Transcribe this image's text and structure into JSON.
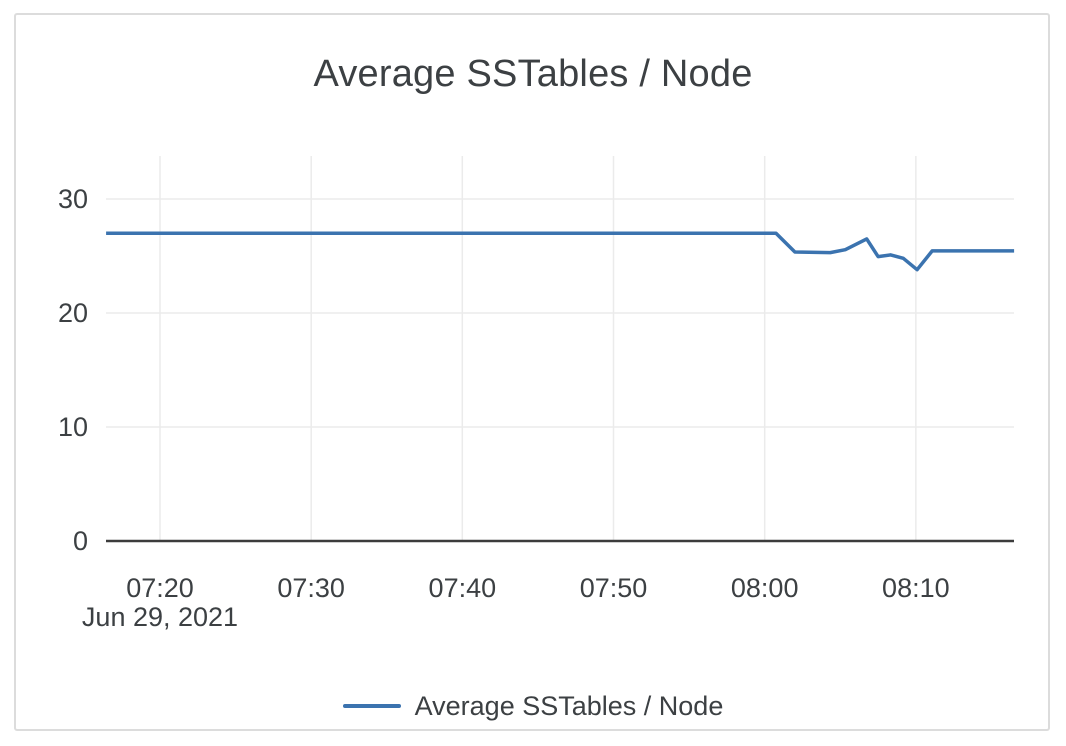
{
  "chart_data": {
    "type": "line",
    "title": "Average SSTables / Node",
    "xlabel": "",
    "ylabel": "",
    "grid": true,
    "legend_position": "bottom",
    "x_axis": {
      "tick_labels": [
        "07:20",
        "07:30",
        "07:40",
        "07:50",
        "08:00",
        "08:10"
      ],
      "date_sublabel": "Jun 29, 2021",
      "visible_time_range": [
        "07:16:26",
        "08:16:30"
      ]
    },
    "y_axis": {
      "tick_labels": [
        "0",
        "10",
        "20",
        "30"
      ],
      "ticks": [
        0,
        10,
        20,
        30
      ],
      "ylim": [
        0,
        33.8
      ]
    },
    "series": [
      {
        "name": "Average SSTables / Node",
        "color": "#3b73af",
        "points": [
          {
            "t": "07:16:26",
            "v": 27
          },
          {
            "t": "08:00:45",
            "v": 27
          },
          {
            "t": "08:02:00",
            "v": 25.35
          },
          {
            "t": "08:04:20",
            "v": 25.3
          },
          {
            "t": "08:05:20",
            "v": 25.55
          },
          {
            "t": "08:06:45",
            "v": 26.5
          },
          {
            "t": "08:07:30",
            "v": 24.95
          },
          {
            "t": "08:08:20",
            "v": 25.1
          },
          {
            "t": "08:09:10",
            "v": 24.8
          },
          {
            "t": "08:10:05",
            "v": 23.8
          },
          {
            "t": "08:11:05",
            "v": 25.45
          },
          {
            "t": "08:16:30",
            "v": 25.45
          }
        ]
      }
    ]
  },
  "colors": {
    "line": "#3b73af",
    "axis": "#3c3c3c",
    "gridline": "#ebebeb",
    "text": "#3c4043",
    "card_border": "#dcdcdc",
    "background": "#ffffff"
  }
}
